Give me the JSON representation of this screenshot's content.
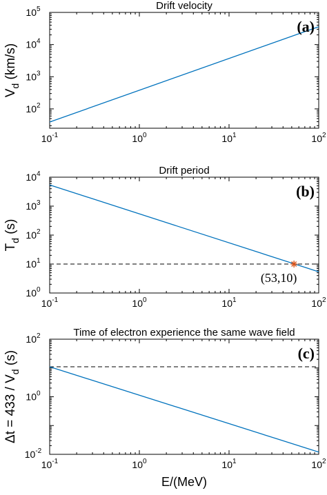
{
  "colors": {
    "series": "#0072BD",
    "reference": "#000000",
    "marker": "#D95319",
    "axes": "#000000"
  },
  "chart_data": [
    {
      "type": "line",
      "panel_label": "(a)",
      "title": "Drift velocity",
      "xlabel": "",
      "ylabel": "V",
      "ylabel_sub": "d",
      "ylabel_suffix": " (km/s)",
      "xscale": "log",
      "yscale": "log",
      "xlim": [
        0.1,
        100
      ],
      "ylim": [
        25,
        100000
      ],
      "xticks": [
        {
          "b": "10",
          "e": "-1"
        },
        {
          "b": "10",
          "e": "0"
        },
        {
          "b": "10",
          "e": "1"
        },
        {
          "b": "10",
          "e": "2"
        }
      ],
      "yticks": [
        {
          "b": "10",
          "e": "2",
          "v": 100
        },
        {
          "b": "10",
          "e": "3",
          "v": 1000
        },
        {
          "b": "10",
          "e": "4",
          "v": 10000
        },
        {
          "b": "10",
          "e": "5",
          "v": 100000
        }
      ],
      "series": [
        {
          "x": [
            0.1,
            100
          ],
          "y": [
            39,
            36000
          ]
        }
      ]
    },
    {
      "type": "line",
      "panel_label": "(b)",
      "title": "Drift period",
      "xlabel": "",
      "ylabel": "T",
      "ylabel_sub": "d",
      "ylabel_suffix": " (s)",
      "xscale": "log",
      "yscale": "log",
      "xlim": [
        0.1,
        100
      ],
      "ylim": [
        1,
        10000
      ],
      "xticks": [
        {
          "b": "10",
          "e": "-1"
        },
        {
          "b": "10",
          "e": "0"
        },
        {
          "b": "10",
          "e": "1"
        },
        {
          "b": "10",
          "e": "2"
        }
      ],
      "yticks": [
        {
          "b": "10",
          "e": "0",
          "v": 1
        },
        {
          "b": "10",
          "e": "1",
          "v": 10
        },
        {
          "b": "10",
          "e": "2",
          "v": 100
        },
        {
          "b": "10",
          "e": "3",
          "v": 1000
        },
        {
          "b": "10",
          "e": "4",
          "v": 10000
        }
      ],
      "series": [
        {
          "x": [
            0.1,
            100
          ],
          "y": [
            5400,
            5.4
          ]
        }
      ],
      "reference_line": {
        "y": 10
      },
      "marker_point": {
        "x": 53,
        "y": 10,
        "label": "(53,10)"
      }
    },
    {
      "type": "line",
      "panel_label": "(c)",
      "title": "Time of electron experience the same wave field",
      "xlabel": "E/(MeV)",
      "ylabel": "Δt = 433 / V",
      "ylabel_sub": "d",
      "ylabel_suffix": " (s)",
      "xscale": "log",
      "yscale": "log",
      "xlim": [
        0.1,
        100
      ],
      "ylim": [
        0.01,
        100
      ],
      "xticks": [
        {
          "b": "10",
          "e": "-1"
        },
        {
          "b": "10",
          "e": "0"
        },
        {
          "b": "10",
          "e": "1"
        },
        {
          "b": "10",
          "e": "2"
        }
      ],
      "yticks": [
        {
          "b": "10",
          "e": "-2",
          "v": 0.01
        },
        {
          "b": "10",
          "e": "0",
          "v": 1
        },
        {
          "b": "10",
          "e": "2",
          "v": 100
        }
      ],
      "series": [
        {
          "x": [
            0.1,
            100
          ],
          "y": [
            11,
            0.012
          ]
        }
      ],
      "reference_line": {
        "y": 11
      }
    }
  ]
}
